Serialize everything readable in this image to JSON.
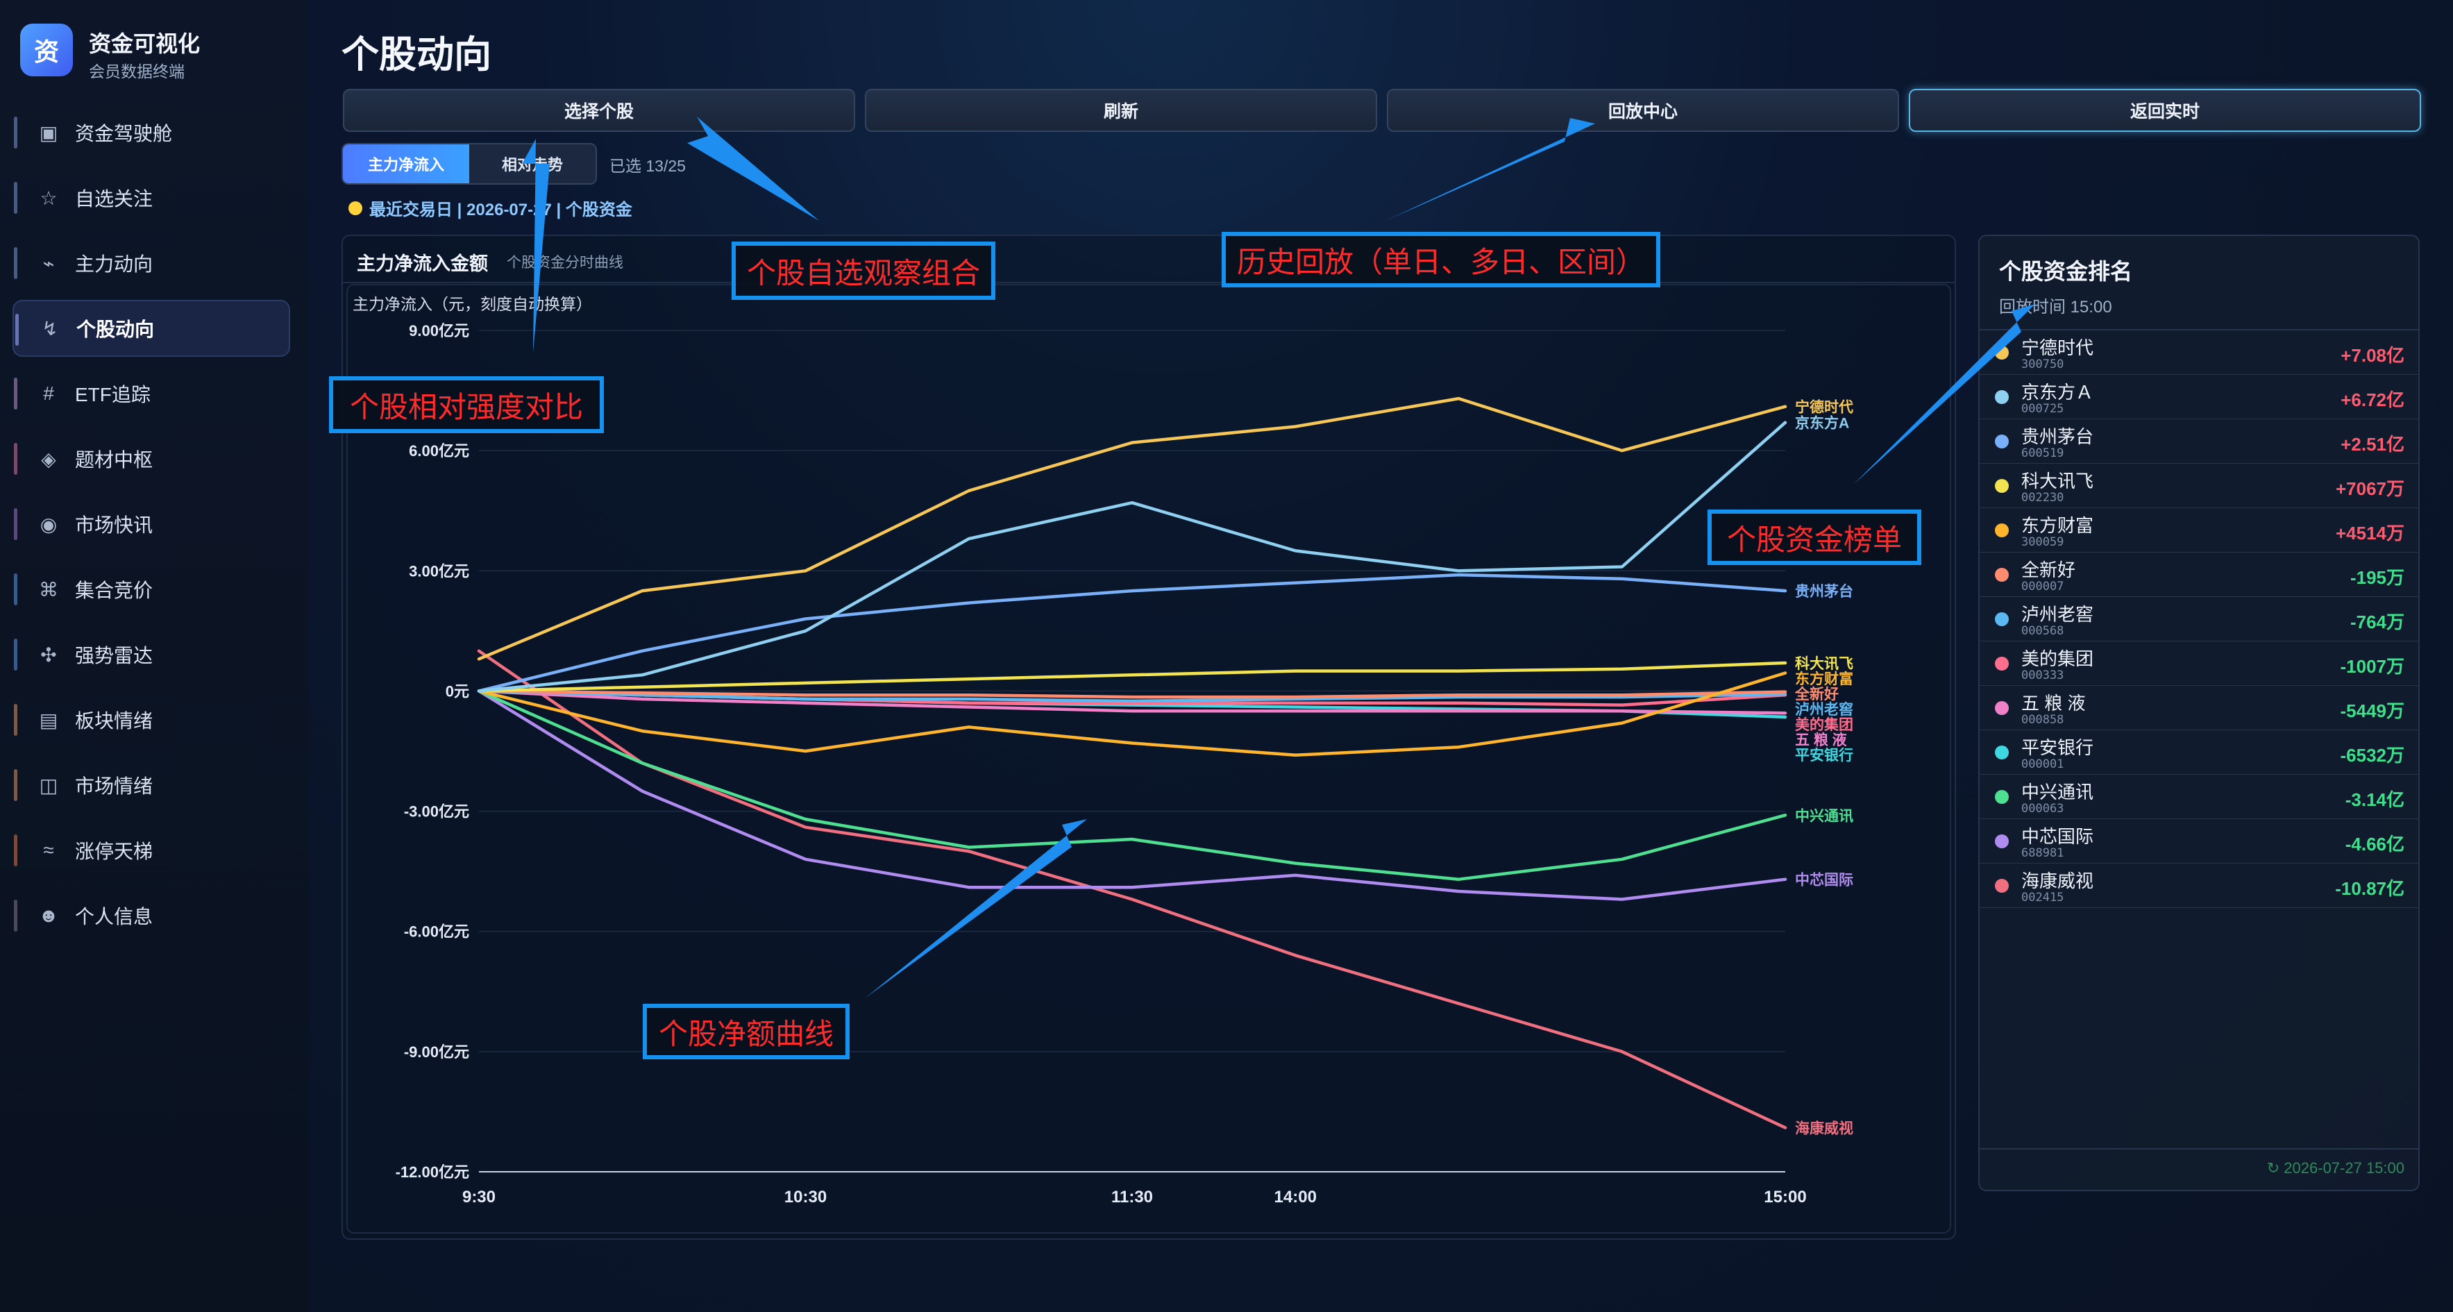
{
  "app": {
    "logo_char": "资",
    "title": "资金可视化",
    "subtitle": "会员数据终端"
  },
  "sidebar": {
    "items": [
      {
        "label": "资金驾驶舱",
        "icon": "cockpit-icon",
        "glyph": "▣",
        "accent": "#4a5a80"
      },
      {
        "label": "自选关注",
        "icon": "star-icon",
        "glyph": "☆",
        "accent": "#4a5a80"
      },
      {
        "label": "主力动向",
        "icon": "trend-icon",
        "glyph": "⌁",
        "accent": "#4a5a80"
      },
      {
        "label": "个股动向",
        "icon": "lightning-icon",
        "glyph": "↯",
        "accent": "#6a74b0",
        "active": true
      },
      {
        "label": "ETF追踪",
        "icon": "hash-icon",
        "glyph": "#",
        "accent": "#6a5a80"
      },
      {
        "label": "题材中枢",
        "icon": "diamond-icon",
        "glyph": "◈",
        "accent": "#7a4a6a"
      },
      {
        "label": "市场快讯",
        "icon": "radio-icon",
        "glyph": "◉",
        "accent": "#5a4a7a"
      },
      {
        "label": "集合竞价",
        "icon": "command-icon",
        "glyph": "⌘",
        "accent": "#3a5a8a"
      },
      {
        "label": "强势雷达",
        "icon": "club-icon",
        "glyph": "✣",
        "accent": "#3a5a8a"
      },
      {
        "label": "板块情绪",
        "icon": "grid-icon",
        "glyph": "▤",
        "accent": "#7a5a4a"
      },
      {
        "label": "市场情绪",
        "icon": "panel-icon",
        "glyph": "◫",
        "accent": "#7a5a4a"
      },
      {
        "label": "涨停天梯",
        "icon": "wave-icon",
        "glyph": "≈",
        "accent": "#7a4a3a"
      },
      {
        "label": "个人信息",
        "icon": "user-face-icon",
        "glyph": "☻",
        "accent": "#4a4a5a"
      }
    ]
  },
  "header": {
    "title": "个股动向"
  },
  "toolbar": {
    "select_stock": "选择个股",
    "refresh": "刷新",
    "replay_center": "回放中心",
    "back_live": "返回实时"
  },
  "mode_tabs": {
    "net_inflow": "主力净流入",
    "relative_trend": "相对走势",
    "selected_count": "已选 13/25"
  },
  "trade_info": "最近交易日 | 2026-07-27 | 个股资金",
  "chart_panel": {
    "title": "主力净流入金额",
    "subtitle": "个股资金分时曲线"
  },
  "chart_data": {
    "type": "line",
    "ylabel": "主力净流入（元，刻度自动换算）",
    "ylim": [
      -12,
      9
    ],
    "yticks": [
      9,
      6,
      3,
      0,
      -3,
      -6,
      -9,
      -12
    ],
    "ytick_labels": [
      "9.00亿元",
      "6.00亿元",
      "3.00亿元",
      "0元",
      "-3.00亿元",
      "-6.00亿元",
      "-9.00亿元",
      "-12.00亿元"
    ],
    "x_ticks": [
      "9:30",
      "10:30",
      "11:30",
      "14:00",
      "15:00"
    ],
    "x": [
      0,
      30,
      60,
      90,
      120,
      150,
      180,
      210,
      240
    ],
    "series": [
      {
        "name": "宁德时代",
        "color": "#f6c657",
        "values": [
          0.8,
          2.5,
          3.0,
          5.0,
          6.2,
          6.6,
          7.3,
          6.0,
          7.1
        ]
      },
      {
        "name": "京东方A",
        "color": "#8fd0f0",
        "values": [
          0,
          0.4,
          1.5,
          3.8,
          4.7,
          3.5,
          3.0,
          3.1,
          6.7
        ]
      },
      {
        "name": "贵州茅台",
        "color": "#7ab0f8",
        "values": [
          0,
          1.0,
          1.8,
          2.2,
          2.5,
          2.7,
          2.9,
          2.8,
          2.5
        ]
      },
      {
        "name": "科大讯飞",
        "color": "#f2e450",
        "values": [
          0,
          0.1,
          0.2,
          0.3,
          0.4,
          0.5,
          0.5,
          0.55,
          0.7
        ]
      },
      {
        "name": "东方财富",
        "color": "#ffb42e",
        "values": [
          0,
          -1.0,
          -1.5,
          -0.9,
          -1.3,
          -1.6,
          -1.4,
          -0.8,
          0.45
        ]
      },
      {
        "name": "全新好",
        "color": "#ff8c6e",
        "values": [
          0,
          -0.05,
          -0.1,
          -0.1,
          -0.15,
          -0.15,
          -0.1,
          -0.1,
          -0.02
        ]
      },
      {
        "name": "泸州老窖",
        "color": "#5cb8f0",
        "values": [
          0,
          -0.1,
          -0.2,
          -0.2,
          -0.25,
          -0.2,
          -0.15,
          -0.15,
          -0.08
        ]
      },
      {
        "name": "美的集团",
        "color": "#ff6e8c",
        "values": [
          0,
          -0.1,
          -0.2,
          -0.3,
          -0.3,
          -0.3,
          -0.3,
          -0.35,
          -0.1
        ]
      },
      {
        "name": "五 粮 液",
        "color": "#f080c8",
        "values": [
          0,
          -0.2,
          -0.3,
          -0.4,
          -0.5,
          -0.5,
          -0.5,
          -0.5,
          -0.55
        ]
      },
      {
        "name": "平安银行",
        "color": "#40d8e0",
        "values": [
          0,
          -0.1,
          -0.2,
          -0.3,
          -0.35,
          -0.4,
          -0.45,
          -0.5,
          -0.65
        ]
      },
      {
        "name": "中兴通讯",
        "color": "#4ee090",
        "values": [
          0,
          -1.8,
          -3.2,
          -3.9,
          -3.7,
          -4.3,
          -4.7,
          -4.2,
          -3.1
        ]
      },
      {
        "name": "中芯国际",
        "color": "#b08cf0",
        "values": [
          0,
          -2.5,
          -4.2,
          -4.9,
          -4.9,
          -4.6,
          -5.0,
          -5.2,
          -4.7
        ]
      },
      {
        "name": "海康威视",
        "color": "#f07080",
        "values": [
          1.0,
          -1.8,
          -3.4,
          -4.0,
          -5.2,
          -6.6,
          -7.8,
          -9.0,
          -10.9
        ]
      }
    ]
  },
  "ranking": {
    "title": "个股资金排名",
    "subtitle": "回放时间 15:00",
    "rows": [
      {
        "name": "宁德时代",
        "code": "300750",
        "value": "+7.08亿",
        "dot": "#f6c657",
        "val_color": "#ff5a6e"
      },
      {
        "name": "京东方Ａ",
        "code": "000725",
        "value": "+6.72亿",
        "dot": "#8fd0f0",
        "val_color": "#ff5a6e"
      },
      {
        "name": "贵州茅台",
        "code": "600519",
        "value": "+2.51亿",
        "dot": "#7ab0f8",
        "val_color": "#ff5a6e"
      },
      {
        "name": "科大讯飞",
        "code": "002230",
        "value": "+7067万",
        "dot": "#f2e450",
        "val_color": "#ff5a6e"
      },
      {
        "name": "东方财富",
        "code": "300059",
        "value": "+4514万",
        "dot": "#ffb42e",
        "val_color": "#ff5a6e"
      },
      {
        "name": "全新好",
        "code": "000007",
        "value": "-195万",
        "dot": "#ff8c6e",
        "val_color": "#3ee08a"
      },
      {
        "name": "泸州老窖",
        "code": "000568",
        "value": "-764万",
        "dot": "#5cb8f0",
        "val_color": "#3ee08a"
      },
      {
        "name": "美的集团",
        "code": "000333",
        "value": "-1007万",
        "dot": "#ff6e8c",
        "val_color": "#3ee08a"
      },
      {
        "name": "五 粮 液",
        "code": "000858",
        "value": "-5449万",
        "dot": "#f080c8",
        "val_color": "#3ee08a"
      },
      {
        "name": "平安银行",
        "code": "000001",
        "value": "-6532万",
        "dot": "#40d8e0",
        "val_color": "#3ee08a"
      },
      {
        "name": "中兴通讯",
        "code": "000063",
        "value": "-3.14亿",
        "dot": "#4ee090",
        "val_color": "#3ee08a"
      },
      {
        "name": "中芯国际",
        "code": "688981",
        "value": "-4.66亿",
        "dot": "#b08cf0",
        "val_color": "#3ee08a"
      },
      {
        "name": "海康威视",
        "code": "002415",
        "value": "-10.87亿",
        "dot": "#f07080",
        "val_color": "#3ee08a"
      }
    ],
    "footer": "↻ 2026-07-27 15:00"
  },
  "annotations": {
    "select_combo": "个股自选观察组合",
    "history_replay": "历史回放（单日、多日、区间）",
    "relative_strength": "个股相对强度对比",
    "ranking_list": "个股资金榜单",
    "net_curve": "个股净额曲线"
  },
  "colors": {
    "annotation_border": "#1592f0",
    "annotation_text": "#ff2a2a",
    "arrow": "#1e8ff0"
  }
}
